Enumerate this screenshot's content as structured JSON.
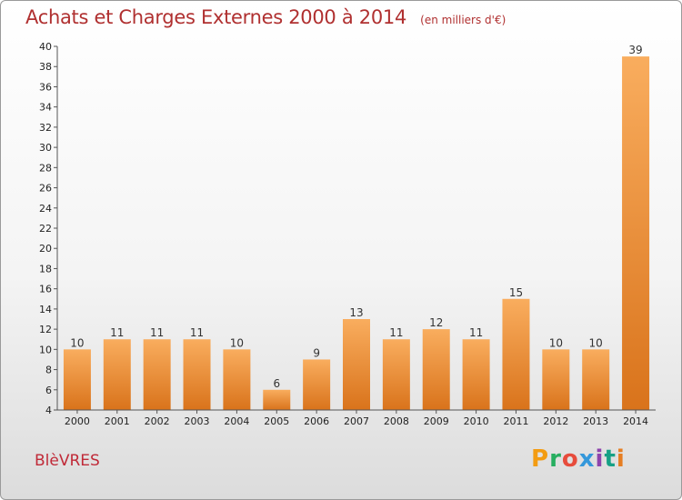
{
  "header": {
    "title": "Achats et Charges Externes 2000 à 2014",
    "unit": "(en milliers d'€)"
  },
  "footer": {
    "commune": "BlèVRES",
    "brand": "Proxiti",
    "brand_colors": [
      "#f39c12",
      "#27ae60",
      "#e74c3c",
      "#3498db",
      "#8e44ad",
      "#16a085",
      "#e67e22"
    ]
  },
  "colors": {
    "title": "#b03030",
    "bar_light": "#f9ad5e",
    "bar_dark": "#d9731b",
    "axis": "#555555"
  },
  "chart_data": {
    "type": "bar",
    "title": "Achats et Charges Externes 2000 à 2014",
    "subtitle": "(en milliers d'€)",
    "xlabel": "",
    "ylabel": "",
    "categories": [
      "2000",
      "2001",
      "2002",
      "2003",
      "2004",
      "2005",
      "2006",
      "2007",
      "2008",
      "2009",
      "2010",
      "2011",
      "2012",
      "2013",
      "2014"
    ],
    "values": [
      10,
      11,
      11,
      11,
      10,
      6,
      9,
      13,
      11,
      12,
      11,
      15,
      10,
      10,
      39
    ],
    "ylim": [
      4,
      40
    ],
    "yticks": [
      4,
      6,
      8,
      10,
      12,
      14,
      16,
      18,
      20,
      22,
      24,
      26,
      28,
      30,
      32,
      34,
      36,
      38,
      40
    ],
    "grid": false,
    "legend": "none"
  }
}
